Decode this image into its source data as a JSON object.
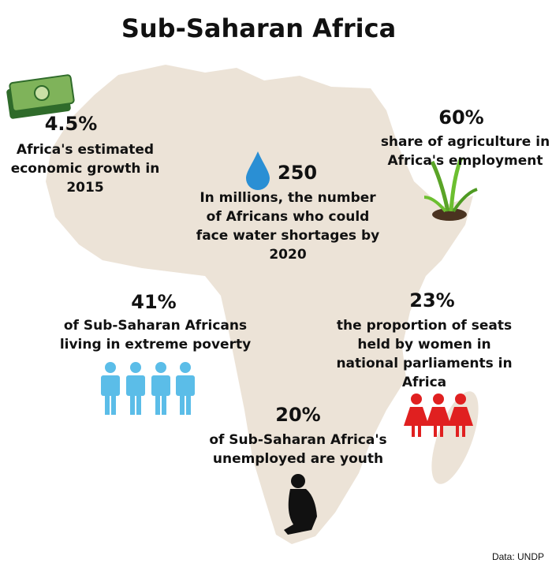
{
  "header": {
    "title": "Sub-Saharan Africa"
  },
  "stats": [
    {
      "value": "4.5%",
      "lines": [
        "Africa's estimated",
        "economic growth in",
        "2015"
      ]
    },
    {
      "value": "60%",
      "lines": [
        "share of agriculture in",
        "Africa's employment"
      ]
    },
    {
      "value": "250",
      "lines": [
        "In millions, the number",
        "of Africans who could",
        "face water shortages by",
        "2020"
      ]
    },
    {
      "value": "41%",
      "lines": [
        "of Sub-Saharan Africans",
        "living in extreme poverty"
      ]
    },
    {
      "value": "23%",
      "lines": [
        "the proportion of seats",
        "held by women in",
        "national parliaments in",
        "Africa"
      ]
    },
    {
      "value": "20%",
      "lines": [
        "of Sub-Saharan Africa's",
        "unemployed are youth"
      ]
    }
  ],
  "footer": {
    "source": "Data: UNDP"
  }
}
